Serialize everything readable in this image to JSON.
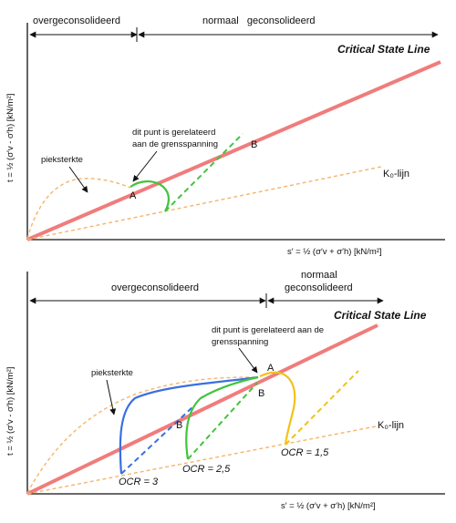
{
  "top": {
    "region_left": "overgeconsolideerd",
    "region_right": "normaal   geconsolideerd",
    "csl_label": "Critical State Line",
    "y_axis_label": "t = ½ (σ′v - σ′h) [kN/m²]",
    "x_axis_label": "s′ = ½ (σ′v + σ′h) [kN/m²]",
    "note_line1": "dit punt is gerelateerd",
    "note_line2": "aan de grensspanning",
    "peak_label": "pieksterkte",
    "k0_label": "K₀-lijn",
    "point_a": "A",
    "point_b": "B"
  },
  "bottom": {
    "region_left": "overgeconsolideerd",
    "region_right_line1": "normaal",
    "region_right_line2": "geconsolideerd",
    "csl_label": "Critical State Line",
    "y_axis_label": "t = ½ (σ′v - σ′h) [kN/m²]",
    "x_axis_label": "s′ = ½ (σ′v + σ′h) [kN/m²]",
    "note_line1": "dit punt is gerelateerd aan de",
    "note_line2": "grensspanning",
    "peak_label": "pieksterkte",
    "k0_label": "K₀-lijn",
    "point_a": "A",
    "point_b1": "B",
    "point_b2": "B",
    "ocr_3": "OCR = 3",
    "ocr_25": "OCR = 2,5",
    "ocr_15": "OCR = 1,5"
  },
  "colors": {
    "csl": "#f07c7c",
    "k0": "#f5b56a",
    "green": "#41c43c",
    "blue": "#3a6fe0",
    "yellow": "#f2c21a"
  }
}
